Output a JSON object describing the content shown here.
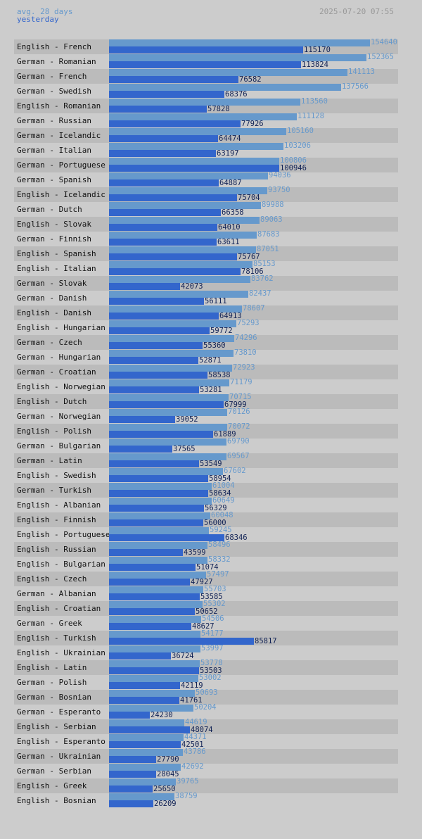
{
  "header": {
    "legend_avg": "avg. 28 days",
    "legend_yesterday": "yesterday",
    "timestamp": "2025-07-20 07:55"
  },
  "colors": {
    "avg": "#6699cc",
    "yesterday": "#3366cc",
    "background": "#cccccc",
    "row_alt": "#bbbbbb"
  },
  "chart_data": {
    "type": "bar",
    "orientation": "horizontal",
    "title": "",
    "xlabel": "",
    "ylabel": "",
    "xlim": [
      0,
      154640
    ],
    "categories": [
      "English - French",
      "German - Romanian",
      "German - French",
      "German - Swedish",
      "English - Romanian",
      "German - Russian",
      "German - Icelandic",
      "German - Italian",
      "German - Portuguese",
      "German - Spanish",
      "English - Icelandic",
      "German - Dutch",
      "English - Slovak",
      "German - Finnish",
      "English - Spanish",
      "English - Italian",
      "German - Slovak",
      "German - Danish",
      "English - Danish",
      "English - Hungarian",
      "German - Czech",
      "German - Hungarian",
      "German - Croatian",
      "English - Norwegian",
      "English - Dutch",
      "German - Norwegian",
      "English - Polish",
      "German - Bulgarian",
      "German - Latin",
      "English - Swedish",
      "German - Turkish",
      "English - Albanian",
      "English - Finnish",
      "English - Portuguese",
      "English - Russian",
      "English - Bulgarian",
      "English - Czech",
      "German - Albanian",
      "English - Croatian",
      "German - Greek",
      "English - Turkish",
      "English - Ukrainian",
      "English - Latin",
      "German - Polish",
      "German - Bosnian",
      "German - Esperanto",
      "English - Serbian",
      "English - Esperanto",
      "German - Ukrainian",
      "German - Serbian",
      "English - Greek",
      "English - Bosnian"
    ],
    "series": [
      {
        "name": "avg. 28 days",
        "values": [
          154640,
          152365,
          141113,
          137566,
          113560,
          111128,
          105160,
          103206,
          100806,
          94036,
          93750,
          89988,
          89063,
          87683,
          87051,
          85153,
          83762,
          82437,
          78607,
          75293,
          74296,
          73810,
          72923,
          71179,
          70715,
          70126,
          70072,
          69790,
          69567,
          67602,
          61004,
          60649,
          60048,
          59245,
          58496,
          58332,
          57497,
          55703,
          55302,
          54506,
          54177,
          53997,
          53778,
          53002,
          50693,
          50204,
          44619,
          44371,
          43786,
          42692,
          39765,
          38759
        ]
      },
      {
        "name": "yesterday",
        "values": [
          115170,
          113824,
          76582,
          68376,
          57828,
          77926,
          64474,
          63197,
          100946,
          64887,
          75704,
          66358,
          64010,
          63611,
          75767,
          78106,
          42073,
          56111,
          64913,
          59772,
          55360,
          52871,
          58538,
          53281,
          67999,
          39052,
          61889,
          37565,
          53549,
          58954,
          58634,
          56329,
          56000,
          68346,
          43599,
          51074,
          47927,
          53585,
          50652,
          48627,
          85817,
          36724,
          53503,
          42119,
          41761,
          24230,
          48074,
          42501,
          27790,
          28045,
          25650,
          26209
        ]
      }
    ]
  }
}
